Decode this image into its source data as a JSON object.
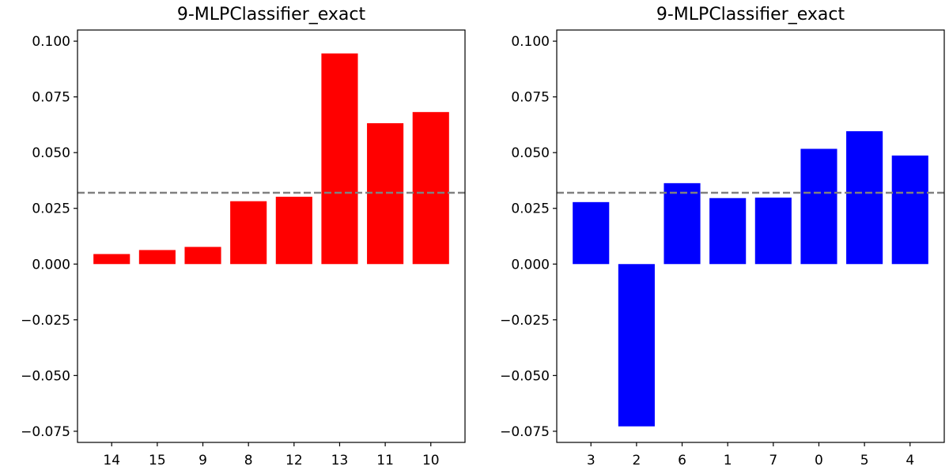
{
  "chart_data": [
    {
      "type": "bar",
      "title": "9-MLPClassifier_exact",
      "xlabel": "",
      "ylabel": "",
      "categories": [
        "14",
        "15",
        "9",
        "8",
        "12",
        "13",
        "11",
        "10"
      ],
      "values": [
        0.0045,
        0.0063,
        0.0077,
        0.0282,
        0.0302,
        0.0945,
        0.0632,
        0.0682
      ],
      "bar_color": "#ff0000",
      "reference_line": 0.032,
      "reference_line_color": "#808080",
      "ylim": [
        -0.08,
        0.105
      ],
      "yticks": [
        -0.075,
        -0.05,
        -0.025,
        0.0,
        0.025,
        0.05,
        0.075,
        0.1
      ],
      "ytick_labels": [
        "−0.075",
        "−0.050",
        "−0.025",
        "0.000",
        "0.025",
        "0.050",
        "0.075",
        "0.100"
      ],
      "grid": false
    },
    {
      "type": "bar",
      "title": "9-MLPClassifier_exact",
      "xlabel": "",
      "ylabel": "",
      "categories": [
        "3",
        "2",
        "6",
        "1",
        "7",
        "0",
        "5",
        "4"
      ],
      "values": [
        0.0278,
        -0.0728,
        0.0363,
        0.0296,
        0.0298,
        0.0517,
        0.0596,
        0.0487
      ],
      "bar_color": "#0000ff",
      "reference_line": 0.032,
      "reference_line_color": "#808080",
      "ylim": [
        -0.08,
        0.105
      ],
      "yticks": [
        -0.075,
        -0.05,
        -0.025,
        0.0,
        0.025,
        0.05,
        0.075,
        0.1
      ],
      "ytick_labels": [
        "−0.075",
        "−0.050",
        "−0.025",
        "0.000",
        "0.025",
        "0.050",
        "0.075",
        "0.100"
      ],
      "grid": false
    }
  ]
}
